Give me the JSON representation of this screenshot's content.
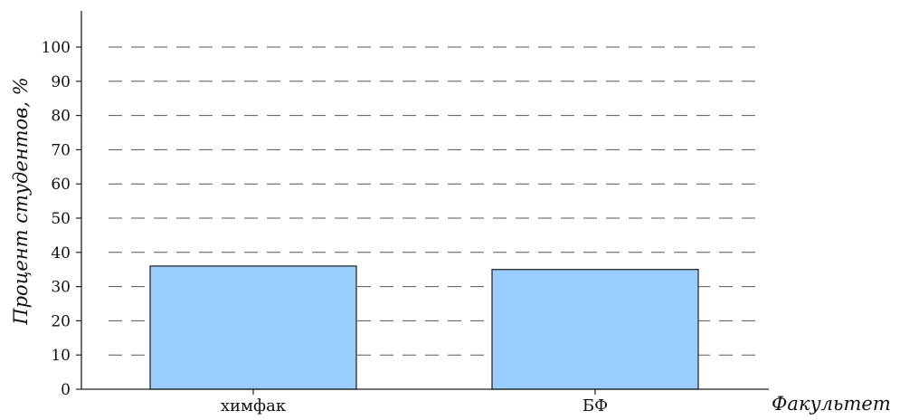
{
  "chart_data": {
    "type": "bar",
    "categories": [
      "химфак",
      "БФ"
    ],
    "values": [
      36,
      35
    ],
    "title": "",
    "xlabel": "Факультет",
    "ylabel": "Процент студентов, %",
    "ylim": [
      0,
      100
    ],
    "yticks": [
      0,
      10,
      20,
      30,
      40,
      50,
      60,
      70,
      80,
      90,
      100
    ],
    "grid": "horizontal dashed",
    "legend": "none",
    "colors": {
      "bar_fill": "#99ccff",
      "bar_edge": "#2b2b2b",
      "grid": "#555555",
      "axis": "#222222"
    }
  }
}
